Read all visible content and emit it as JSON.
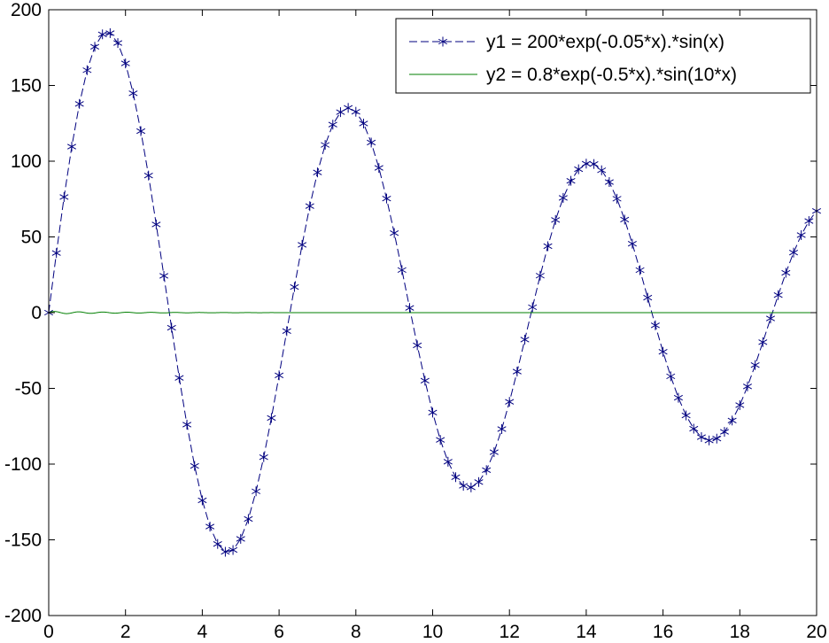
{
  "chart_data": {
    "type": "line",
    "xlim": [
      0,
      20
    ],
    "ylim": [
      -200,
      200
    ],
    "xticks": [
      0,
      2,
      4,
      6,
      8,
      10,
      12,
      14,
      16,
      18,
      20
    ],
    "yticks": [
      -200,
      -150,
      -100,
      -50,
      0,
      50,
      100,
      150,
      200
    ],
    "xtick_labels": [
      "0",
      "2",
      "4",
      "6",
      "8",
      "10",
      "12",
      "14",
      "16",
      "18",
      "20"
    ],
    "ytick_labels": [
      "-200",
      "-150",
      "-100",
      "-50",
      "0",
      "50",
      "100",
      "150",
      "200"
    ],
    "grid": false,
    "legend_position": "top-right",
    "series": [
      {
        "name": "y1 = 200*exp(-0.05*x).*sin(x)",
        "formula": "200*exp(-0.05*x)*sin(x)",
        "x_start": 0,
        "x_end": 20,
        "x_step": 0.2,
        "color": "#00007f",
        "line_style": "dashed",
        "marker": "asterisk"
      },
      {
        "name": "y2 = 0.8*exp(-0.5*x).*sin(10*x)",
        "formula": "0.8*exp(-0.5*x)*sin(10*x)",
        "x_start": 0,
        "x_end": 20,
        "x_step": 0.01,
        "color": "#007f00",
        "line_style": "solid",
        "marker": "none"
      }
    ]
  }
}
